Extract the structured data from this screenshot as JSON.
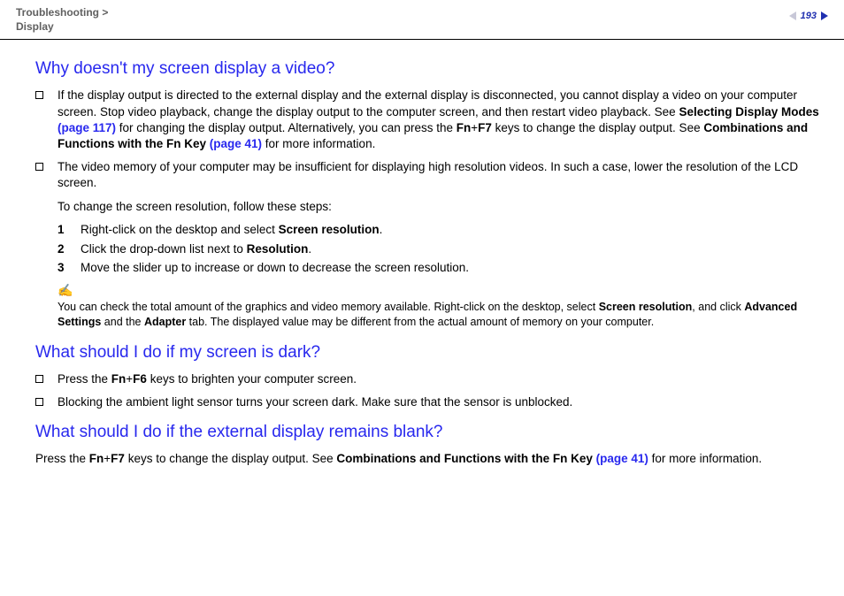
{
  "header": {
    "breadcrumb_line1": "Troubleshooting >",
    "breadcrumb_line2": "Display",
    "page_number": "193"
  },
  "q1": {
    "title": "Why doesn't my screen display a video?",
    "b1_pre": "If the display output is directed to the external display and the external display is disconnected, you cannot display a video on your computer screen. Stop video playback, change the display output to the computer screen, and then restart video playback. See ",
    "b1_ref1": "Selecting Display Modes ",
    "b1_ref1_page": "(page 117)",
    "b1_mid1": " for changing the display output. Alternatively, you can press the ",
    "b1_fn": "Fn",
    "b1_plus": "+",
    "b1_f7": "F7",
    "b1_mid2": " keys to change the display output. See ",
    "b1_ref2": "Combinations and Functions with the Fn Key ",
    "b1_ref2_page": "(page 41)",
    "b1_tail": " for more information.",
    "b2": "The video memory of your computer may be insufficient for displaying high resolution videos. In such a case, lower the resolution of the LCD screen.",
    "b2_sub": "To change the screen resolution, follow these steps:",
    "steps": {
      "s1_pre": "Right-click on the desktop and select ",
      "s1_bold": "Screen resolution",
      "s1_post": ".",
      "s2_pre": "Click the drop-down list next to ",
      "s2_bold": "Resolution",
      "s2_post": ".",
      "s3": "Move the slider up to increase or down to decrease the screen resolution."
    },
    "note_pre": "You can check the total amount of the graphics and video memory available. Right-click on the desktop, select ",
    "note_b1": "Screen resolution",
    "note_mid1": ", and click ",
    "note_b2": "Advanced Settings",
    "note_mid2": " and the ",
    "note_b3": "Adapter",
    "note_tail": " tab. The displayed value may be different from the actual amount of memory on your computer."
  },
  "q2": {
    "title": "What should I do if my screen is dark?",
    "b1_pre": "Press the ",
    "b1_fn": "Fn",
    "b1_plus": "+",
    "b1_f6": "F6",
    "b1_post": " keys to brighten your computer screen.",
    "b2": "Blocking the ambient light sensor turns your screen dark. Make sure that the sensor is unblocked."
  },
  "q3": {
    "title": "What should I do if the external display remains blank?",
    "p_pre": "Press the ",
    "p_fn": "Fn",
    "p_plus": "+",
    "p_f7": "F7",
    "p_mid": " keys to change the display output. See ",
    "p_ref": "Combinations and Functions with the Fn Key ",
    "p_ref_page": "(page 41)",
    "p_tail": " for more information."
  }
}
